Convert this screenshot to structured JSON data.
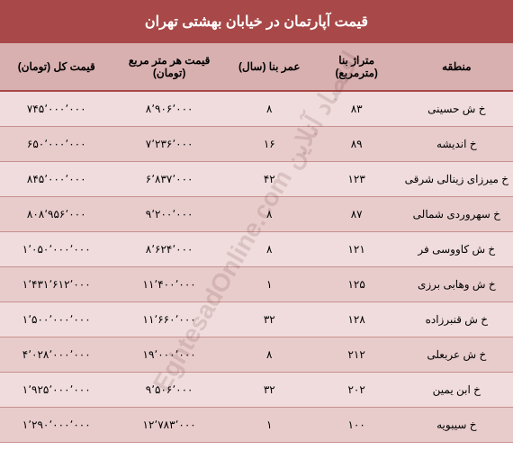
{
  "title": "قیمت آپارتمان در خیابان بهشتی تهران",
  "watermark": "EghtesadOnline.com اقتصاد آنلاین",
  "styling": {
    "header_bg": "#a84848",
    "header_text": "#ffffff",
    "thead_bg": "#d9b0b0",
    "row_odd_bg": "#f0dcdc",
    "row_even_bg": "#e8cccc",
    "border_color": "#c89090",
    "title_fontsize": 16,
    "cell_fontsize": 12
  },
  "columns": [
    {
      "key": "region",
      "label": "منطقه"
    },
    {
      "key": "area",
      "label": "متراژ بنا (مترمربع)"
    },
    {
      "key": "age",
      "label": "عمر بنا (سال)"
    },
    {
      "key": "price_sqm",
      "label": "قیمت هر متر مربع (تومان)"
    },
    {
      "key": "total",
      "label": "قیمت کل (تومان)"
    }
  ],
  "rows": [
    {
      "region": "خ ش حسینی",
      "area": "۸۳",
      "age": "۸",
      "price_sqm": "۸٬۹۰۶٬۰۰۰",
      "total": "۷۴۵٬۰۰۰٬۰۰۰"
    },
    {
      "region": "خ اندیشه",
      "area": "۸۹",
      "age": "۱۶",
      "price_sqm": "۷٬۲۳۶٬۰۰۰",
      "total": "۶۵۰٬۰۰۰٬۰۰۰"
    },
    {
      "region": "خ میرزای زینالی شرقی",
      "area": "۱۲۳",
      "age": "۴۲",
      "price_sqm": "۶٬۸۳۷٬۰۰۰",
      "total": "۸۴۵٬۰۰۰٬۰۰۰"
    },
    {
      "region": "خ سهروردی شمالی",
      "area": "۸۷",
      "age": "۸",
      "price_sqm": "۹٬۲۰۰٬۰۰۰",
      "total": "۸۰۸٬۹۵۶٬۰۰۰"
    },
    {
      "region": "خ ش کاووسی فر",
      "area": "۱۲۱",
      "age": "۸",
      "price_sqm": "۸٬۶۲۴٬۰۰۰",
      "total": "۱٬۰۵۰٬۰۰۰٬۰۰۰"
    },
    {
      "region": "خ ش وهابی برزی",
      "area": "۱۲۵",
      "age": "۱",
      "price_sqm": "۱۱٬۴۰۰٬۰۰۰",
      "total": "۱٬۴۳۱٬۶۱۲٬۰۰۰"
    },
    {
      "region": "خ ش قنبرزاده",
      "area": "۱۲۸",
      "age": "۳۲",
      "price_sqm": "۱۱٬۶۶۰٬۰۰۰",
      "total": "۱٬۵۰۰٬۰۰۰٬۰۰۰"
    },
    {
      "region": "خ ش عربعلی",
      "area": "۲۱۲",
      "age": "۸",
      "price_sqm": "۱۹٬۰۰۰٬۰۰۰",
      "total": "۴٬۰۲۸٬۰۰۰٬۰۰۰"
    },
    {
      "region": "خ ابن یمین",
      "area": "۲۰۲",
      "age": "۳۲",
      "price_sqm": "۹٬۵۰۶٬۰۰۰",
      "total": "۱٬۹۲۵٬۰۰۰٬۰۰۰"
    },
    {
      "region": "خ سیبویه",
      "area": "۱۰۰",
      "age": "۱",
      "price_sqm": "۱۲٬۷۸۳٬۰۰۰",
      "total": "۱٬۲۹۰٬۰۰۰٬۰۰۰"
    }
  ]
}
